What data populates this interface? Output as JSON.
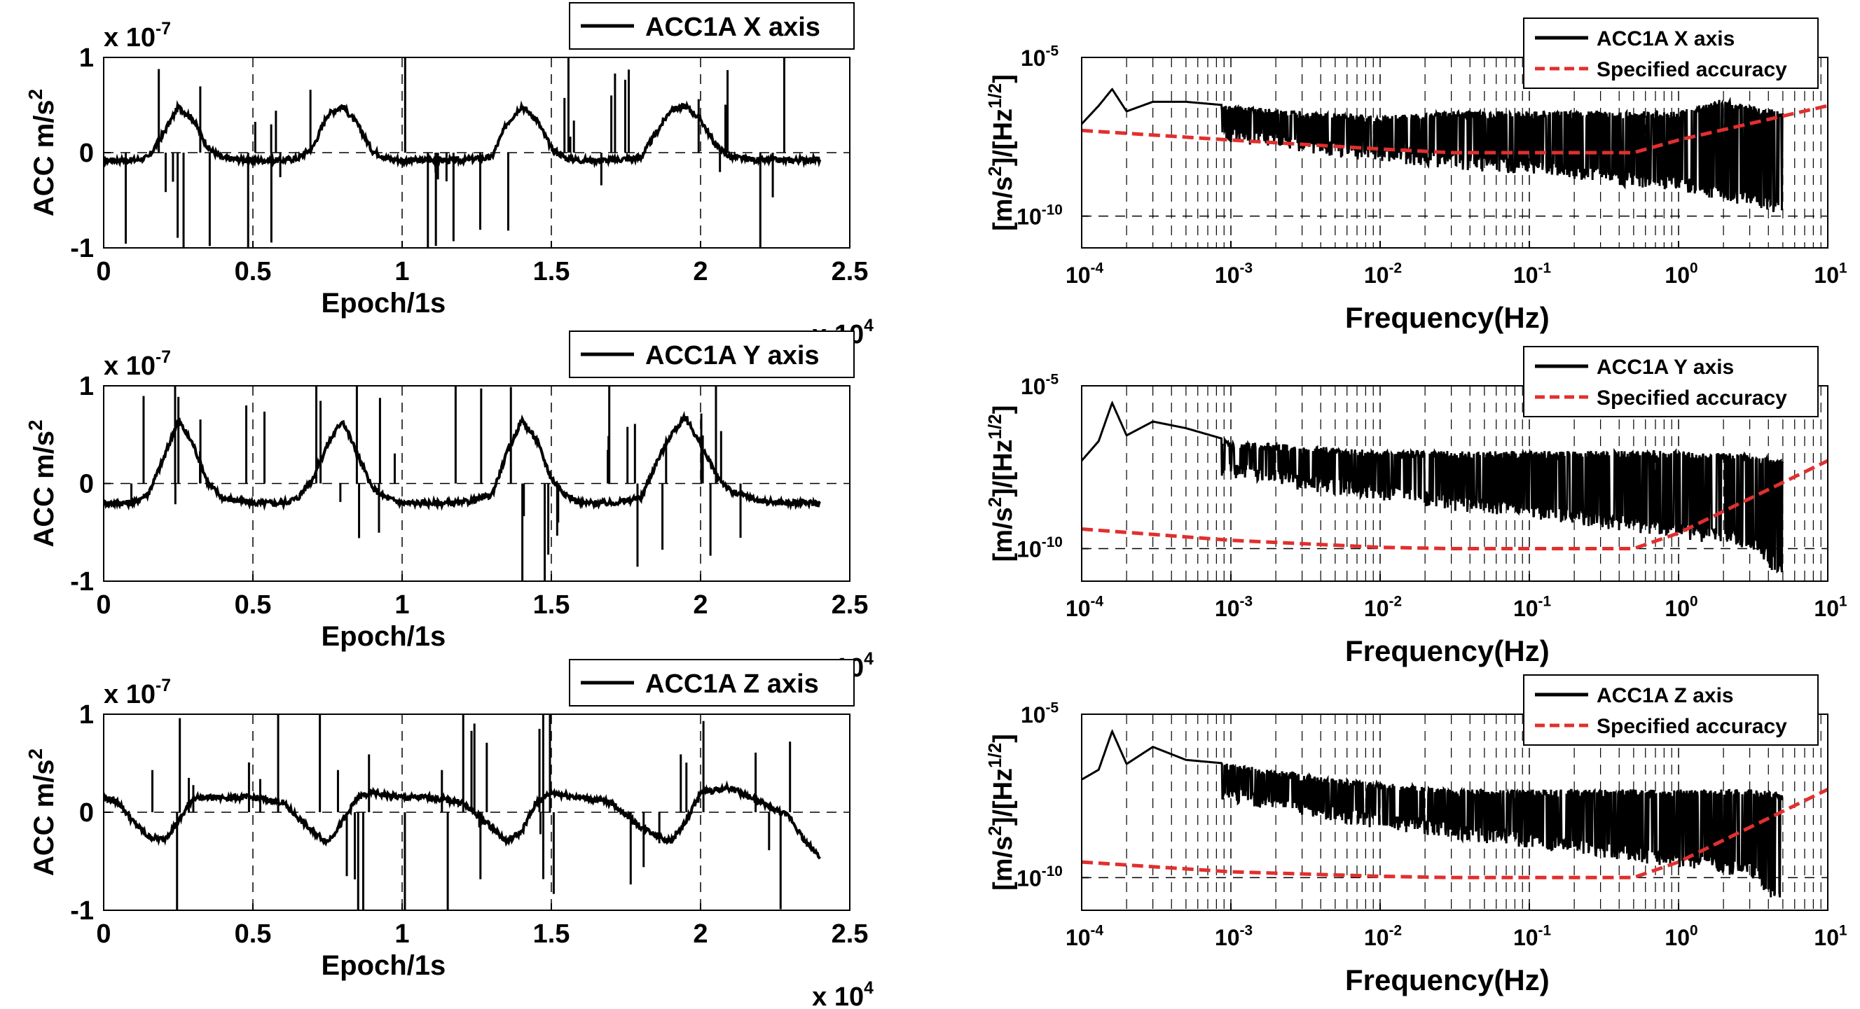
{
  "colors": {
    "signal": "#000000",
    "spec": "#e0302e",
    "grid": "#000000",
    "background": "#ffffff"
  },
  "chart_data": [
    {
      "id": "ts_x",
      "type": "line",
      "panel": "left-top",
      "xlabel": "Epoch/1s",
      "ylabel": "ACC m/s",
      "ylabel_sup": "2",
      "y_multiplier": "x 10",
      "y_multiplier_exp": "-7",
      "x_multiplier": "x 10",
      "x_multiplier_exp": "4",
      "xlim": [
        0,
        2.5
      ],
      "ylim": [
        -1,
        1
      ],
      "xticks": [
        0,
        0.5,
        1,
        1.5,
        2,
        2.5
      ],
      "xtick_labels": [
        "0",
        "0.5",
        "1",
        "1.5",
        "2",
        "2.5"
      ],
      "yticks": [
        -1,
        0,
        1
      ],
      "ytick_labels": [
        "-1",
        "0",
        "1"
      ],
      "legend": [
        "ACC1A X axis"
      ],
      "legend_loc": "top-right",
      "grid": "dashed",
      "series": [
        {
          "name": "ACC1A X axis",
          "x": [
            0,
            0.1,
            0.15,
            0.2,
            0.25,
            0.3,
            0.35,
            0.4,
            0.5,
            0.6,
            0.65,
            0.7,
            0.75,
            0.8,
            0.85,
            0.9,
            0.95,
            1.0,
            1.1,
            1.2,
            1.3,
            1.35,
            1.4,
            1.45,
            1.5,
            1.55,
            1.6,
            1.7,
            1.8,
            1.85,
            1.9,
            1.95,
            2.0,
            2.05,
            2.1,
            2.2,
            2.3,
            2.4
          ],
          "values": [
            -0.08,
            -0.08,
            -0.05,
            0.2,
            0.48,
            0.35,
            0.05,
            -0.06,
            -0.08,
            -0.08,
            -0.06,
            0.05,
            0.4,
            0.49,
            0.3,
            0.02,
            -0.06,
            -0.08,
            -0.08,
            -0.08,
            -0.05,
            0.3,
            0.49,
            0.35,
            0.05,
            -0.06,
            -0.08,
            -0.08,
            -0.05,
            0.2,
            0.45,
            0.49,
            0.35,
            0.08,
            -0.05,
            -0.08,
            -0.08,
            -0.07
          ]
        }
      ]
    },
    {
      "id": "ts_y",
      "type": "line",
      "panel": "left-middle",
      "xlabel": "Epoch/1s",
      "ylabel": "ACC m/s",
      "ylabel_sup": "2",
      "y_multiplier": "x 10",
      "y_multiplier_exp": "-7",
      "x_multiplier": "x 10",
      "x_multiplier_exp": "4",
      "xlim": [
        0,
        2.5
      ],
      "ylim": [
        -1,
        1
      ],
      "xticks": [
        0,
        0.5,
        1,
        1.5,
        2,
        2.5
      ],
      "xtick_labels": [
        "0",
        "0.5",
        "1",
        "1.5",
        "2",
        "2.5"
      ],
      "yticks": [
        -1,
        0,
        1
      ],
      "ytick_labels": [
        "-1",
        "0",
        "1"
      ],
      "legend": [
        "ACC1A Y axis"
      ],
      "legend_loc": "top-right",
      "grid": "dashed",
      "series": [
        {
          "name": "ACC1A Y axis",
          "x": [
            0,
            0.1,
            0.15,
            0.2,
            0.25,
            0.3,
            0.35,
            0.4,
            0.5,
            0.6,
            0.65,
            0.7,
            0.75,
            0.8,
            0.85,
            0.9,
            0.95,
            1.0,
            1.1,
            1.2,
            1.3,
            1.35,
            1.4,
            1.45,
            1.5,
            1.55,
            1.6,
            1.7,
            1.8,
            1.85,
            1.9,
            1.95,
            2.0,
            2.05,
            2.1,
            2.2,
            2.3,
            2.4
          ],
          "values": [
            -0.2,
            -0.2,
            -0.1,
            0.25,
            0.65,
            0.4,
            0.0,
            -0.15,
            -0.2,
            -0.2,
            -0.15,
            0.05,
            0.4,
            0.65,
            0.3,
            -0.05,
            -0.15,
            -0.2,
            -0.2,
            -0.2,
            -0.12,
            0.3,
            0.65,
            0.45,
            0.05,
            -0.12,
            -0.2,
            -0.2,
            -0.15,
            0.2,
            0.5,
            0.68,
            0.4,
            0.1,
            -0.08,
            -0.18,
            -0.2,
            -0.2
          ]
        }
      ]
    },
    {
      "id": "ts_z",
      "type": "line",
      "panel": "left-bottom",
      "xlabel": "Epoch/1s",
      "ylabel": "ACC m/s",
      "ylabel_sup": "2",
      "y_multiplier": "x 10",
      "y_multiplier_exp": "-7",
      "x_multiplier": "x 10",
      "x_multiplier_exp": "4",
      "xlim": [
        0,
        2.5
      ],
      "ylim": [
        -1,
        1
      ],
      "xticks": [
        0,
        0.5,
        1,
        1.5,
        2,
        2.5
      ],
      "xtick_labels": [
        "0",
        "0.5",
        "1",
        "1.5",
        "2",
        "2.5"
      ],
      "yticks": [
        -1,
        0,
        1
      ],
      "ytick_labels": [
        "-1",
        "0",
        "1"
      ],
      "legend": [
        "ACC1A Z axis"
      ],
      "legend_loc": "top-right",
      "grid": "dashed",
      "series": [
        {
          "name": "ACC1A Z axis",
          "x": [
            0,
            0.05,
            0.1,
            0.15,
            0.2,
            0.25,
            0.3,
            0.4,
            0.5,
            0.6,
            0.7,
            0.75,
            0.8,
            0.85,
            0.9,
            1.0,
            1.1,
            1.2,
            1.3,
            1.35,
            1.4,
            1.45,
            1.5,
            1.6,
            1.7,
            1.8,
            1.9,
            1.95,
            2.0,
            2.1,
            2.2,
            2.3,
            2.35,
            2.4
          ],
          "values": [
            0.15,
            0.1,
            -0.1,
            -0.25,
            -0.28,
            -0.1,
            0.15,
            0.15,
            0.15,
            0.1,
            -0.2,
            -0.3,
            -0.1,
            0.15,
            0.2,
            0.15,
            0.15,
            0.1,
            -0.15,
            -0.3,
            -0.2,
            0.1,
            0.2,
            0.15,
            0.1,
            -0.15,
            -0.3,
            -0.1,
            0.2,
            0.25,
            0.1,
            -0.05,
            -0.3,
            -0.45
          ]
        }
      ]
    },
    {
      "id": "psd_x",
      "type": "line",
      "panel": "right-top",
      "xscale": "log",
      "yscale": "log",
      "xlabel": "Frequency(Hz)",
      "ylabel_parts": [
        "[m/s",
        "2",
        "]/[Hz",
        "1/2",
        "]"
      ],
      "xlim": [
        0.0001,
        10
      ],
      "ylim": [
        1e-11,
        1e-05
      ],
      "xticks": [
        0.0001,
        0.001,
        0.01,
        0.1,
        1,
        10
      ],
      "xtick_labels": [
        [
          "10",
          "-4"
        ],
        [
          "10",
          "-3"
        ],
        [
          "10",
          "-2"
        ],
        [
          "10",
          "-1"
        ],
        [
          "10",
          "0"
        ],
        [
          "10",
          "1"
        ]
      ],
      "yticks": [
        1e-10,
        1e-05
      ],
      "ytick_labels": [
        [
          "10",
          "-10"
        ],
        [
          "10",
          "-5"
        ]
      ],
      "legend": [
        "ACC1A X axis",
        "Specified accuracy"
      ],
      "legend_loc": "top-right",
      "grid": "dashed",
      "series": [
        {
          "name": "ACC1A X axis",
          "style": "solid-black",
          "x": [
            0.0001,
            0.00013,
            0.00016,
            0.0002,
            0.0003,
            0.0005,
            0.001,
            0.003,
            0.01,
            0.03,
            0.1,
            0.3,
            1,
            2,
            3,
            5
          ],
          "values": [
            8e-08,
            3e-07,
            1e-06,
            2e-07,
            4e-07,
            4e-07,
            3e-07,
            2e-07,
            1.5e-07,
            2e-07,
            2e-07,
            2e-07,
            2e-07,
            5e-07,
            3e-07,
            2e-07
          ],
          "lower": [
            8e-08,
            1e-07,
            1e-07,
            8e-08,
            5e-08,
            4e-08,
            2e-08,
            1e-08,
            5e-09,
            3e-09,
            2e-09,
            1e-09,
            6e-10,
            3e-10,
            2e-10,
            1e-10
          ]
        },
        {
          "name": "Specified accuracy",
          "style": "dashed-red",
          "x": [
            0.0001,
            0.001,
            0.01,
            0.03,
            0.1,
            0.5,
            1,
            10
          ],
          "values": [
            5e-08,
            2.5e-08,
            1.3e-08,
            1e-08,
            1e-08,
            1e-08,
            2.5e-08,
            3e-07
          ]
        }
      ]
    },
    {
      "id": "psd_y",
      "type": "line",
      "panel": "right-middle",
      "xscale": "log",
      "yscale": "log",
      "xlabel": "Frequency(Hz)",
      "ylabel_parts": [
        "[m/s",
        "2",
        "]/[Hz",
        "1/2",
        "]"
      ],
      "xlim": [
        0.0001,
        10
      ],
      "ylim": [
        1e-11,
        1e-05
      ],
      "xticks": [
        0.0001,
        0.001,
        0.01,
        0.1,
        1,
        10
      ],
      "xtick_labels": [
        [
          "10",
          "-4"
        ],
        [
          "10",
          "-3"
        ],
        [
          "10",
          "-2"
        ],
        [
          "10",
          "-1"
        ],
        [
          "10",
          "0"
        ],
        [
          "10",
          "1"
        ]
      ],
      "yticks": [
        1e-10,
        1e-05
      ],
      "ytick_labels": [
        [
          "10",
          "-10"
        ],
        [
          "10",
          "-5"
        ]
      ],
      "legend": [
        "ACC1A Y axis",
        "Specified accuracy"
      ],
      "legend_loc": "top-right",
      "grid": "dashed",
      "series": [
        {
          "name": "ACC1A Y axis",
          "style": "solid-black",
          "x": [
            0.0001,
            0.00013,
            0.00016,
            0.0002,
            0.0003,
            0.0005,
            0.001,
            0.003,
            0.01,
            0.03,
            0.1,
            0.3,
            1,
            3,
            5
          ],
          "values": [
            5e-08,
            2e-07,
            3e-06,
            3e-07,
            8e-07,
            5e-07,
            2e-07,
            1.5e-07,
            1e-07,
            1e-07,
            1e-07,
            1e-07,
            1e-07,
            8e-08,
            5e-08
          ],
          "lower": [
            5e-08,
            8e-08,
            8e-08,
            5e-08,
            4e-08,
            3e-08,
            1.5e-08,
            6e-09,
            3e-09,
            1.5e-09,
            8e-10,
            4e-10,
            2e-10,
            1e-10,
            1e-11
          ]
        },
        {
          "name": "Specified accuracy",
          "style": "dashed-red",
          "x": [
            0.0001,
            0.001,
            0.01,
            0.03,
            0.1,
            0.5,
            1,
            10
          ],
          "values": [
            4e-10,
            1.8e-10,
            1.1e-10,
            1e-10,
            1e-10,
            1e-10,
            3e-10,
            5e-08
          ]
        }
      ]
    },
    {
      "id": "psd_z",
      "type": "line",
      "panel": "right-bottom",
      "xscale": "log",
      "yscale": "log",
      "xlabel": "Frequency(Hz)",
      "ylabel_parts": [
        "[m/s",
        "2",
        "]/[Hz",
        "1/2",
        "]"
      ],
      "xlim": [
        0.0001,
        10
      ],
      "ylim": [
        1e-11,
        1e-05
      ],
      "xticks": [
        0.0001,
        0.001,
        0.01,
        0.1,
        1,
        10
      ],
      "xtick_labels": [
        [
          "10",
          "-4"
        ],
        [
          "10",
          "-3"
        ],
        [
          "10",
          "-2"
        ],
        [
          "10",
          "-1"
        ],
        [
          "10",
          "0"
        ],
        [
          "10",
          "1"
        ]
      ],
      "yticks": [
        1e-10,
        1e-05
      ],
      "ytick_labels": [
        [
          "10",
          "-10"
        ],
        [
          "10",
          "-5"
        ]
      ],
      "legend": [
        "ACC1A Z axis",
        "Specified accuracy"
      ],
      "legend_loc": "top-right",
      "grid": "dashed",
      "series": [
        {
          "name": "ACC1A Z axis",
          "style": "solid-black",
          "x": [
            0.0001,
            0.00013,
            0.00016,
            0.0002,
            0.0003,
            0.0005,
            0.001,
            0.003,
            0.01,
            0.03,
            0.1,
            0.3,
            1,
            3,
            5
          ],
          "values": [
            1e-07,
            2e-07,
            3e-06,
            3e-07,
            1e-06,
            4e-07,
            3e-07,
            1.5e-07,
            8e-08,
            5e-08,
            5e-08,
            5e-08,
            5e-08,
            5e-08,
            4e-08
          ],
          "lower": [
            1e-07,
            1e-07,
            1e-07,
            8e-08,
            6e-08,
            4e-08,
            2e-08,
            7e-09,
            3e-09,
            1.5e-09,
            8e-10,
            4e-10,
            2e-10,
            1e-10,
            1e-11
          ]
        },
        {
          "name": "Specified accuracy",
          "style": "dashed-red",
          "x": [
            0.0001,
            0.001,
            0.01,
            0.03,
            0.1,
            0.5,
            1,
            10
          ],
          "values": [
            3e-10,
            1.5e-10,
            1.1e-10,
            1e-10,
            1e-10,
            1e-10,
            3e-10,
            5e-08
          ]
        }
      ]
    }
  ]
}
